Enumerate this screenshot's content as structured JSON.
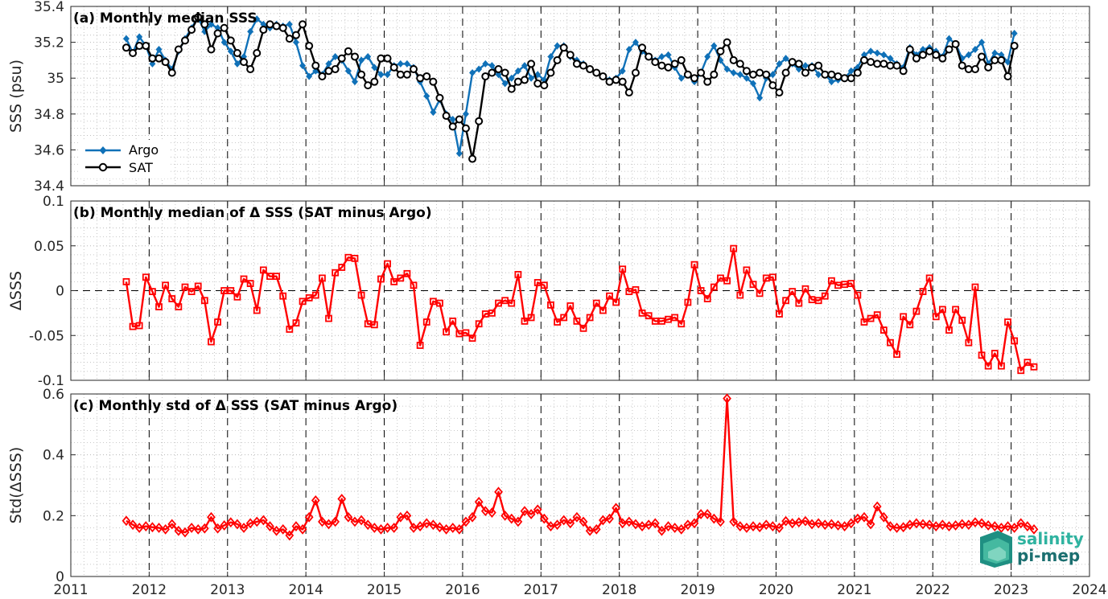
{
  "colors": {
    "argo": "#1071b8",
    "sat": "#000000",
    "delta": "#ff0000",
    "grid": "#b8b8b8",
    "axis": "#262626"
  },
  "x_ticks": [
    "2011",
    "2012",
    "2013",
    "2014",
    "2015",
    "2016",
    "2017",
    "2018",
    "2019",
    "2020",
    "2021",
    "2022",
    "2023",
    "2024"
  ],
  "logo": {
    "line1": "salinity",
    "line2": "pi-mep"
  },
  "chart_data": [
    {
      "type": "line",
      "title": "(a) Monthly median SSS",
      "ylabel": "SSS (psu)",
      "xlim": [
        2011,
        2024
      ],
      "ylim": [
        34.4,
        35.4
      ],
      "y_ticks": [
        "34.4",
        "34.6",
        "34.8",
        "35",
        "35.2",
        "35.4"
      ],
      "legend": "bottom-left",
      "x_start": 2011.708,
      "x_step": 0.0833333,
      "series": [
        {
          "name": "Argo",
          "marker": "diamond-filled",
          "values": [
            35.22,
            35.14,
            35.23,
            35.18,
            35.08,
            35.16,
            35.1,
            35.05,
            35.15,
            35.22,
            35.28,
            35.34,
            35.26,
            35.3,
            35.28,
            35.2,
            35.15,
            35.08,
            35.12,
            35.26,
            35.33,
            35.3,
            35.28,
            35.3,
            35.29,
            35.3,
            35.2,
            35.07,
            35.01,
            35.04,
            35.02,
            35.08,
            35.12,
            35.1,
            35.04,
            34.98,
            35.1,
            35.12,
            35.06,
            35.02,
            35.02,
            35.07,
            35.08,
            35.08,
            35.06,
            34.98,
            34.9,
            34.81,
            34.88,
            34.8,
            34.77,
            34.58,
            34.8,
            35.03,
            35.05,
            35.08,
            35.07,
            35.02,
            34.97,
            35.0,
            35.04,
            35.07,
            35.0,
            35.02,
            34.99,
            35.12,
            35.18,
            35.18,
            35.12,
            35.1,
            35.08,
            35.05,
            35.03,
            35.01,
            34.99,
            35.0,
            35.04,
            35.16,
            35.2,
            35.15,
            35.12,
            35.1,
            35.12,
            35.13,
            35.06,
            35.0,
            35.02,
            34.98,
            35.03,
            35.12,
            35.18,
            35.1,
            35.05,
            35.03,
            35.02,
            35.0,
            34.97,
            34.89,
            35.0,
            35.02,
            35.08,
            35.11,
            35.08,
            35.05,
            35.07,
            35.07,
            35.02,
            35.02,
            34.98,
            34.99,
            35.0,
            35.04,
            35.06,
            35.13,
            35.15,
            35.14,
            35.13,
            35.11,
            35.08,
            35.06,
            35.17,
            35.13,
            35.16,
            35.17,
            35.15,
            35.12,
            35.22,
            35.19,
            35.11,
            35.13,
            35.16,
            35.2,
            35.08,
            35.14,
            35.13,
            35.09,
            35.25
          ]
        },
        {
          "name": "SAT",
          "marker": "circle-open",
          "values": [
            35.17,
            35.14,
            35.18,
            35.18,
            35.11,
            35.11,
            35.09,
            35.03,
            35.16,
            35.21,
            35.27,
            35.34,
            35.3,
            35.16,
            35.25,
            35.28,
            35.21,
            35.14,
            35.09,
            35.05,
            35.14,
            35.27,
            35.3,
            35.29,
            35.28,
            35.22,
            35.24,
            35.3,
            35.18,
            35.07,
            35.01,
            35.04,
            35.05,
            35.11,
            35.15,
            35.12,
            35.02,
            34.96,
            34.98,
            35.11,
            35.11,
            35.06,
            35.02,
            35.02,
            35.05,
            35.0,
            35.01,
            34.98,
            34.89,
            34.79,
            34.73,
            34.77,
            34.72,
            34.55,
            34.76,
            35.01,
            35.03,
            35.05,
            35.03,
            34.94,
            34.98,
            34.99,
            35.08,
            34.97,
            34.96,
            35.03,
            35.1,
            35.17,
            35.13,
            35.08,
            35.07,
            35.05,
            35.03,
            35.01,
            34.98,
            34.99,
            34.98,
            34.92,
            35.03,
            35.17,
            35.12,
            35.09,
            35.07,
            35.06,
            35.08,
            35.1,
            35.02,
            35.0,
            35.03,
            34.98,
            35.02,
            35.15,
            35.2,
            35.1,
            35.08,
            35.04,
            35.02,
            35.03,
            35.02,
            34.96,
            34.92,
            35.03,
            35.09,
            35.08,
            35.03,
            35.06,
            35.07,
            35.02,
            35.02,
            35.01,
            35.0,
            35.0,
            35.03,
            35.1,
            35.09,
            35.08,
            35.08,
            35.07,
            35.07,
            35.04,
            35.16,
            35.11,
            35.13,
            35.15,
            35.13,
            35.11,
            35.16,
            35.19,
            35.07,
            35.05,
            35.05,
            35.12,
            35.06,
            35.1,
            35.1,
            35.01,
            35.18
          ]
        }
      ]
    },
    {
      "type": "line",
      "title": "(b) Monthly median of Δ SSS (SAT minus Argo)",
      "ylabel": "ΔSSS",
      "xlim": [
        2011,
        2024
      ],
      "ylim": [
        -0.1,
        0.1
      ],
      "y_ticks": [
        "-0.1",
        "-0.05",
        "0",
        "0.05",
        "0.1"
      ],
      "x_start": 2011.708,
      "x_step": 0.0833333,
      "series": [
        {
          "name": "",
          "marker": "square-open",
          "values": [
            0.01,
            -0.04,
            -0.039,
            0.015,
            -0.001,
            -0.018,
            0.006,
            -0.009,
            -0.018,
            0.004,
            -0.001,
            0.005,
            -0.011,
            -0.057,
            -0.035,
            0.0,
            0.0,
            -0.007,
            0.013,
            0.008,
            -0.022,
            0.023,
            0.016,
            0.016,
            -0.006,
            -0.043,
            -0.036,
            -0.012,
            -0.008,
            -0.005,
            0.014,
            -0.031,
            0.02,
            0.026,
            0.037,
            0.036,
            -0.005,
            -0.037,
            -0.038,
            0.013,
            0.03,
            0.01,
            0.014,
            0.019,
            0.006,
            -0.061,
            -0.035,
            -0.012,
            -0.014,
            -0.046,
            -0.034,
            -0.048,
            -0.047,
            -0.053,
            -0.037,
            -0.026,
            -0.025,
            -0.014,
            -0.011,
            -0.014,
            0.018,
            -0.034,
            -0.03,
            0.009,
            0.006,
            -0.016,
            -0.035,
            -0.03,
            -0.017,
            -0.034,
            -0.042,
            -0.03,
            -0.014,
            -0.022,
            -0.006,
            -0.013,
            0.024,
            -0.001,
            0.001,
            -0.025,
            -0.028,
            -0.034,
            -0.034,
            -0.032,
            -0.03,
            -0.037,
            -0.013,
            0.029,
            0.0,
            -0.009,
            0.004,
            0.014,
            0.011,
            0.047,
            -0.005,
            0.023,
            0.007,
            -0.003,
            0.014,
            0.015,
            -0.026,
            -0.011,
            -0.001,
            -0.014,
            0.002,
            -0.01,
            -0.011,
            -0.006,
            0.011,
            0.006,
            0.007,
            0.008,
            -0.005,
            -0.035,
            -0.031,
            -0.027,
            -0.044,
            -0.058,
            -0.071,
            -0.029,
            -0.038,
            -0.023,
            -0.001,
            0.014,
            -0.029,
            -0.021,
            -0.044,
            -0.021,
            -0.033,
            -0.058,
            0.004,
            -0.072,
            -0.084,
            -0.07,
            -0.084,
            -0.035,
            -0.056,
            -0.089,
            -0.08,
            -0.085
          ]
        }
      ]
    },
    {
      "type": "line",
      "title": "(c) Monthly std of Δ SSS (SAT minus Argo)",
      "ylabel": "Std(ΔSSS)",
      "xlim": [
        2011,
        2024
      ],
      "ylim": [
        0,
        0.6
      ],
      "y_ticks": [
        "0",
        "0.2",
        "0.4",
        "0.6"
      ],
      "x_start": 2011.708,
      "x_step": 0.0833333,
      "series": [
        {
          "name": "",
          "marker": "diamond-open",
          "values": [
            0.183,
            0.17,
            0.16,
            0.165,
            0.162,
            0.16,
            0.155,
            0.172,
            0.15,
            0.145,
            0.16,
            0.155,
            0.158,
            0.195,
            0.158,
            0.168,
            0.178,
            0.172,
            0.16,
            0.175,
            0.18,
            0.185,
            0.165,
            0.15,
            0.155,
            0.135,
            0.165,
            0.155,
            0.195,
            0.25,
            0.18,
            0.172,
            0.18,
            0.255,
            0.195,
            0.18,
            0.185,
            0.17,
            0.16,
            0.155,
            0.16,
            0.16,
            0.195,
            0.2,
            0.16,
            0.165,
            0.175,
            0.17,
            0.162,
            0.155,
            0.16,
            0.155,
            0.18,
            0.195,
            0.245,
            0.215,
            0.21,
            0.278,
            0.2,
            0.19,
            0.18,
            0.215,
            0.205,
            0.22,
            0.19,
            0.165,
            0.17,
            0.185,
            0.175,
            0.195,
            0.18,
            0.15,
            0.155,
            0.185,
            0.19,
            0.225,
            0.175,
            0.18,
            0.172,
            0.165,
            0.17,
            0.175,
            0.15,
            0.165,
            0.16,
            0.155,
            0.17,
            0.175,
            0.205,
            0.205,
            0.19,
            0.18,
            0.585,
            0.18,
            0.165,
            0.16,
            0.165,
            0.162,
            0.17,
            0.165,
            0.16,
            0.182,
            0.175,
            0.178,
            0.182,
            0.172,
            0.175,
            0.17,
            0.172,
            0.168,
            0.165,
            0.175,
            0.19,
            0.195,
            0.172,
            0.23,
            0.195,
            0.165,
            0.16,
            0.162,
            0.17,
            0.175,
            0.172,
            0.17,
            0.165,
            0.17,
            0.165,
            0.168,
            0.172,
            0.17,
            0.178,
            0.175,
            0.168,
            0.165,
            0.16,
            0.165,
            0.16,
            0.175,
            0.165,
            0.155
          ]
        }
      ]
    }
  ]
}
